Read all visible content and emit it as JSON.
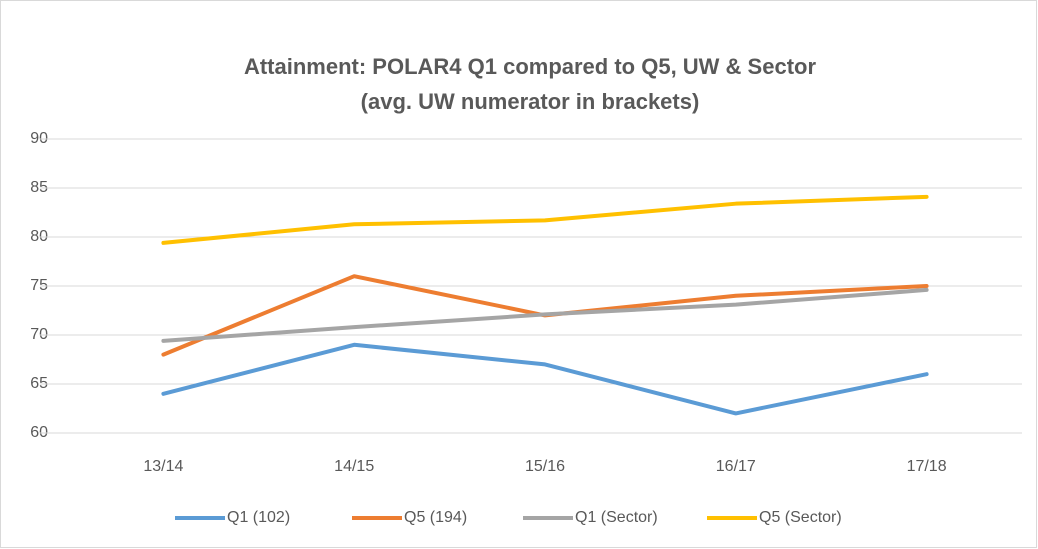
{
  "chart_data": {
    "type": "line",
    "title": "Attainment: POLAR4 Q1 compared to Q5, UW & Sector",
    "subtitle": "(avg. UW numerator in brackets)",
    "categories": [
      "13/14",
      "14/15",
      "15/16",
      "16/17",
      "17/18"
    ],
    "series": [
      {
        "name": "Q1 (102)",
        "color": "#5b9bd5",
        "values": [
          64,
          69,
          67,
          62,
          66
        ]
      },
      {
        "name": "Q5 (194)",
        "color": "#ed7d31",
        "values": [
          68,
          76,
          72,
          74,
          75
        ]
      },
      {
        "name": "Q1 (Sector)",
        "color": "#a5a5a5",
        "values": [
          69.4,
          70.8,
          72.1,
          73.1,
          74.6
        ]
      },
      {
        "name": "Q5 (Sector)",
        "color": "#ffc000",
        "values": [
          79.4,
          81.3,
          81.7,
          83.4,
          84.1
        ]
      }
    ],
    "ylim": [
      60,
      90
    ],
    "yticks": [
      60,
      65,
      70,
      75,
      80,
      85,
      90
    ],
    "grid": true,
    "legend": "bottom"
  }
}
